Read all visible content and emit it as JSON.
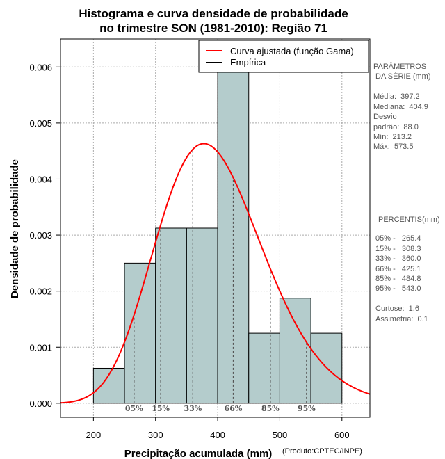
{
  "chart_data": {
    "type": "histogram",
    "title_lines": [
      "Histograma e curva densidade de probabilidade",
      "no trimestre SON (1981-2010): Região 71"
    ],
    "xlabel": "Precipitação acumulada (mm)",
    "ylabel": "Densidade de probabilidade",
    "credit": "(Produto:CPTEC/INPE)",
    "xlim": [
      147,
      645
    ],
    "ylim": [
      -0.00025,
      0.0065
    ],
    "x_ticks": [
      200,
      300,
      400,
      500,
      600
    ],
    "x_tick_labels": [
      "200",
      "300",
      "400",
      "500",
      "600"
    ],
    "y_ticks": [
      0.0,
      0.001,
      0.002,
      0.003,
      0.004,
      0.005,
      0.006
    ],
    "y_tick_labels": [
      "0.000",
      "0.001",
      "0.002",
      "0.003",
      "0.004",
      "0.005",
      "0.006"
    ],
    "grid": true,
    "bins": [
      {
        "from": 200,
        "to": 250,
        "density": 0.000625
      },
      {
        "from": 250,
        "to": 300,
        "density": 0.0025
      },
      {
        "from": 300,
        "to": 350,
        "density": 0.003125
      },
      {
        "from": 350,
        "to": 400,
        "density": 0.003125
      },
      {
        "from": 400,
        "to": 450,
        "density": 0.00625
      },
      {
        "from": 450,
        "to": 500,
        "density": 0.00125
      },
      {
        "from": 500,
        "to": 550,
        "density": 0.001875
      },
      {
        "from": 550,
        "to": 600,
        "density": 0.00125
      }
    ],
    "fitted_curve": {
      "name": "Curva ajustada (função Gama)",
      "distribution": "gamma",
      "shape": 20.4,
      "scale": 19.47,
      "color": "#ff0000"
    },
    "percentiles": [
      {
        "label": "05%",
        "value": 265.4
      },
      {
        "label": "15%",
        "value": 308.3
      },
      {
        "label": "33%",
        "value": 360.0
      },
      {
        "label": "66%",
        "value": 425.1
      },
      {
        "label": "85%",
        "value": 484.8
      },
      {
        "label": "95%",
        "value": 543.0
      }
    ],
    "legend": {
      "placement": "top-right",
      "entries": [
        {
          "label": "Curva ajustada (função Gama)",
          "color": "#ff0000"
        },
        {
          "label": "Empírica",
          "color": "#000000"
        }
      ]
    }
  },
  "side_panel": {
    "params_title_lines": [
      "PARÂMETROS",
      " DA SÉRIE (mm)"
    ],
    "params_lines": [
      "Média:  397.2",
      "Mediana:  404.9",
      "Desvio",
      "padrão:  88.0",
      "Mín:  213.2",
      "Máx:  573.5"
    ],
    "percentis_title": "PERCENTIS(mm)",
    "percentis_lines": [
      "05% -   265.4",
      "15% -   308.3",
      "33% -   360.0",
      "66% -   425.1",
      "85% -   484.8",
      "95% -   543.0"
    ],
    "stats_lines": [
      "Curtose:  1.6",
      "Assimetria:  0.1"
    ]
  },
  "colors": {
    "bar_fill": "#b4cccc",
    "curve": "#ff0000",
    "grid": "#aaaaaa",
    "percentile_line": "#555555"
  }
}
